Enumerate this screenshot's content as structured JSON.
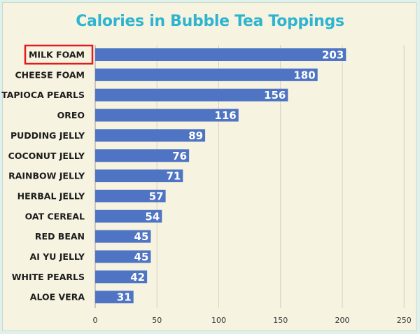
{
  "chart_data": {
    "type": "bar",
    "orientation": "horizontal",
    "title": "Calories in Bubble Tea Toppings",
    "categories": [
      "MILK FOAM",
      "CHEESE FOAM",
      "TAPIOCA PEARLS",
      "OREO",
      "PUDDING JELLY",
      "COCONUT JELLY",
      "RAINBOW JELLY",
      "HERBAL JELLY",
      "OAT CEREAL",
      "RED BEAN",
      "AI YU JELLY",
      "WHITE PEARLS",
      "ALOE VERA"
    ],
    "values": [
      203,
      180,
      156,
      116,
      89,
      76,
      71,
      57,
      54,
      45,
      45,
      42,
      31
    ],
    "xticks": [
      0,
      50,
      100,
      150,
      200,
      250
    ],
    "xlim": [
      0,
      250
    ],
    "grid": "vertical",
    "highlighted_category": "MILK FOAM",
    "colors": {
      "bar": "#4f74c3",
      "title": "#2fb4cf",
      "highlight_box": "#e21c1c",
      "background": "#f7f3e1"
    }
  }
}
